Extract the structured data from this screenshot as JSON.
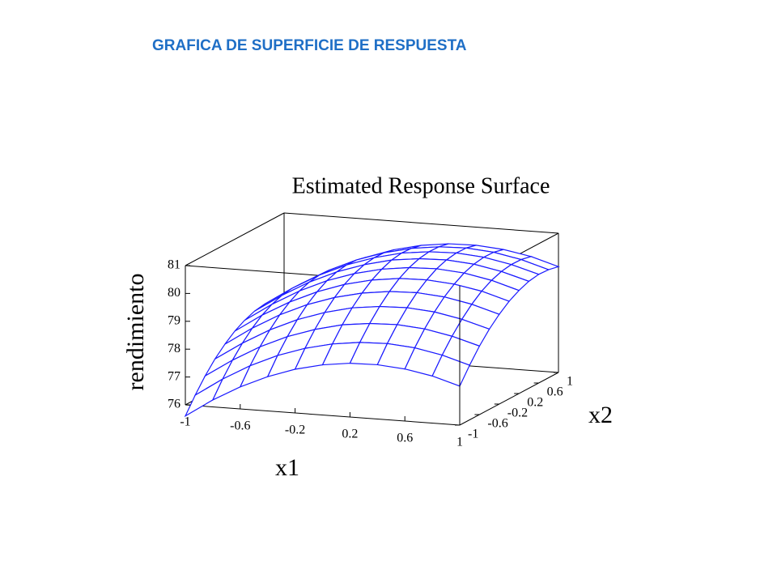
{
  "header": {
    "title": "GRAFICA DE SUPERFICIE DE RESPUESTA"
  },
  "chart_data": {
    "type": "surface",
    "title": "Estimated Response Surface",
    "xlabel": "x1",
    "ylabel": "x2",
    "zlabel": "rendimiento",
    "color": "#1a1aff",
    "x1": [
      -1,
      -0.8,
      -0.6,
      -0.4,
      -0.2,
      0,
      0.2,
      0.4,
      0.6,
      0.8,
      1
    ],
    "x2": [
      -1,
      -0.8,
      -0.6,
      -0.4,
      -0.2,
      0,
      0.2,
      0.4,
      0.6,
      0.8,
      1
    ],
    "z": [
      [
        75.6,
        76.25,
        76.79,
        77.23,
        77.57,
        77.8,
        77.93,
        77.95,
        77.87,
        77.69,
        77.4
      ],
      [
        76.16,
        76.81,
        77.36,
        77.8,
        78.13,
        78.36,
        78.49,
        78.52,
        78.44,
        78.25,
        77.96
      ],
      [
        76.66,
        77.3,
        77.85,
        78.29,
        78.62,
        78.86,
        78.98,
        79.01,
        78.93,
        78.74,
        78.46
      ],
      [
        77.08,
        77.72,
        78.27,
        78.71,
        79.04,
        79.28,
        79.4,
        79.43,
        79.35,
        79.16,
        78.88
      ],
      [
        77.42,
        78.07,
        78.62,
        79.06,
        79.39,
        79.62,
        79.75,
        79.78,
        79.7,
        79.51,
        79.22
      ],
      [
        77.7,
        78.35,
        78.89,
        79.33,
        79.67,
        79.9,
        80.03,
        80.05,
        79.97,
        79.79,
        79.5
      ],
      [
        77.9,
        78.55,
        79.1,
        79.54,
        79.87,
        80.1,
        80.23,
        80.26,
        80.18,
        79.99,
        79.7
      ],
      [
        78.04,
        78.68,
        79.23,
        79.67,
        80.0,
        80.24,
        80.36,
        80.39,
        80.31,
        80.12,
        79.84
      ],
      [
        78.1,
        78.74,
        79.29,
        79.73,
        80.06,
        80.3,
        80.42,
        80.45,
        80.37,
        80.18,
        79.9
      ],
      [
        78.08,
        78.73,
        79.28,
        79.72,
        80.05,
        80.28,
        80.41,
        80.44,
        80.36,
        80.17,
        79.88
      ],
      [
        78.0,
        78.65,
        79.19,
        79.63,
        79.97,
        80.2,
        80.33,
        80.35,
        80.27,
        80.09,
        79.8
      ]
    ],
    "xlim": [
      -1,
      1
    ],
    "ylim": [
      -1,
      1
    ],
    "zlim": [
      76,
      81
    ],
    "xticks": [
      -1,
      -0.6,
      -0.2,
      0.2,
      0.6,
      1
    ],
    "yticks": [
      -1,
      -0.6,
      -0.2,
      0.2,
      0.6,
      1
    ],
    "zticks": [
      76,
      77,
      78,
      79,
      80,
      81
    ]
  }
}
